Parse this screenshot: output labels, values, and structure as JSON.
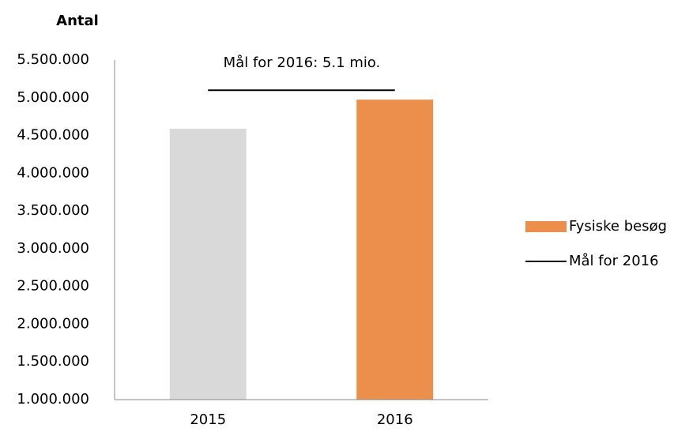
{
  "chart_data": {
    "type": "bar",
    "y_axis_label": "Antal",
    "annotation": "Mål for 2016: 5.1 mio.",
    "categories": [
      "2015",
      "2016"
    ],
    "series": [
      {
        "name": "Fysiske besøg",
        "color": "#ed8f4c",
        "colors": [
          "#d9d9d9",
          "#ed8f4c"
        ],
        "values": [
          4590000,
          4975000
        ]
      }
    ],
    "target": {
      "name": "Mål for 2016",
      "color": "#000000",
      "value": 5100000
    },
    "ylim": [
      1000000,
      5500000
    ],
    "yticks": [
      {
        "value": 1000000,
        "label": "1.000.000"
      },
      {
        "value": 1500000,
        "label": "1.500.000"
      },
      {
        "value": 2000000,
        "label": "2.000.000"
      },
      {
        "value": 2500000,
        "label": "2.500.000"
      },
      {
        "value": 3000000,
        "label": "3.000.000"
      },
      {
        "value": 3500000,
        "label": "3.500.000"
      },
      {
        "value": 4000000,
        "label": "4.000.000"
      },
      {
        "value": 4500000,
        "label": "4.500.000"
      },
      {
        "value": 5000000,
        "label": "5.000.000"
      },
      {
        "value": 5500000,
        "label": "5.500.000"
      }
    ],
    "grid": false,
    "legend": "right"
  }
}
